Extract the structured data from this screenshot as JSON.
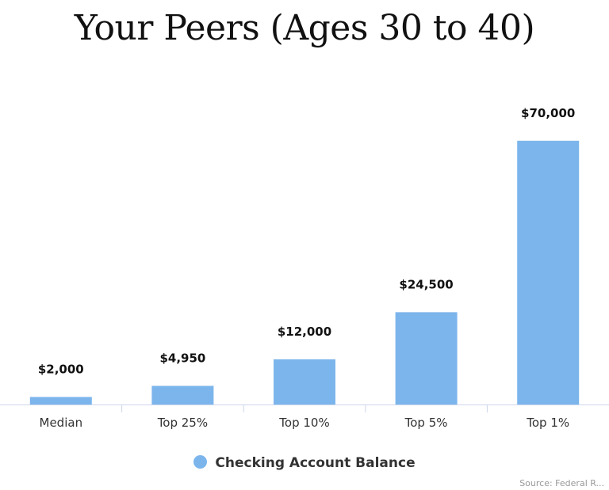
{
  "colors": {
    "bar": "#7cb5ec",
    "axis": "#ccd6eb",
    "text": "#333333",
    "label": "#111111"
  },
  "chart_data": {
    "type": "bar",
    "title": "Your Peers (Ages 30 to 40)",
    "categories": [
      "Median",
      "Top 25%",
      "Top 10%",
      "Top 5%",
      "Top 1%"
    ],
    "series": [
      {
        "name": "Checking Account Balance",
        "values": [
          2000,
          4950,
          12000,
          24500,
          70000
        ],
        "data_labels": [
          "$2,000",
          "$4,950",
          "$12,000",
          "$24,500",
          "$70,000"
        ]
      }
    ],
    "ylim": [
      0,
      75000
    ],
    "grid": false,
    "legend": "bottom-center"
  },
  "footer": {
    "credit": "Source: Federal R..."
  }
}
